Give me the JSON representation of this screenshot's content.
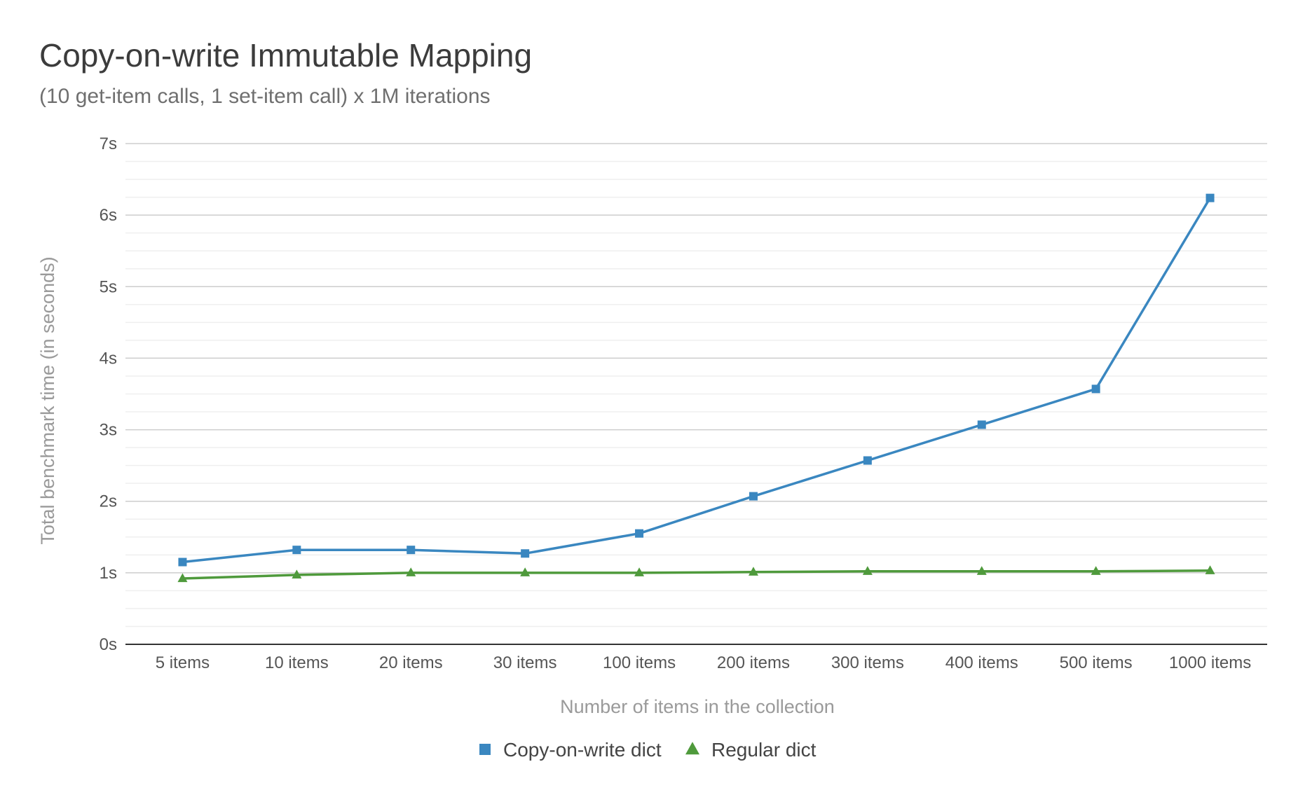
{
  "chart_data": {
    "type": "line",
    "title": "Copy-on-write Immutable Mapping",
    "subtitle": "(10 get-item calls, 1 set-item call) x 1M iterations",
    "xlabel": "Number of items in the collection",
    "ylabel": "Total benchmark time (in seconds)",
    "categories": [
      "5 items",
      "10 items",
      "20 items",
      "30 items",
      "100 items",
      "200 items",
      "300 items",
      "400 items",
      "500 items",
      "1000 items"
    ],
    "ylim": [
      0,
      7
    ],
    "yticks": [
      {
        "value": 0,
        "label": "0s"
      },
      {
        "value": 1,
        "label": "1s"
      },
      {
        "value": 2,
        "label": "2s"
      },
      {
        "value": 3,
        "label": "3s"
      },
      {
        "value": 4,
        "label": "4s"
      },
      {
        "value": 5,
        "label": "5s"
      },
      {
        "value": 6,
        "label": "6s"
      },
      {
        "value": 7,
        "label": "7s"
      }
    ],
    "minor_gridlines_per_major": 3,
    "grid": true,
    "legend_position": "bottom-center",
    "series": [
      {
        "name": "Copy-on-write dict",
        "color": "#3a87c0",
        "marker": "square",
        "values": [
          1.15,
          1.32,
          1.32,
          1.27,
          1.55,
          2.07,
          2.57,
          3.07,
          3.57,
          6.24
        ]
      },
      {
        "name": "Regular dict",
        "color": "#4f9a3c",
        "marker": "triangle",
        "values": [
          0.92,
          0.97,
          1.0,
          1.0,
          1.0,
          1.01,
          1.02,
          1.02,
          1.02,
          1.03
        ]
      }
    ]
  }
}
